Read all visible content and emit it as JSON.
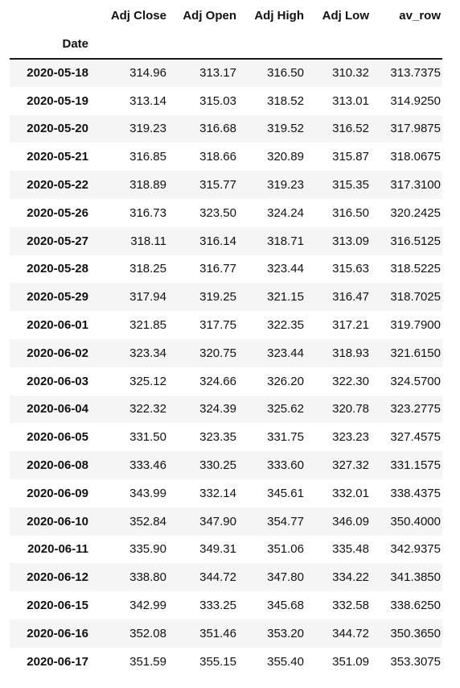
{
  "table": {
    "columns": [
      "Adj Close",
      "Adj Open",
      "Adj High",
      "Adj Low",
      "av_row"
    ],
    "index_name": "Date",
    "rows": [
      {
        "date": "2020-05-18",
        "values": [
          "314.96",
          "313.17",
          "316.50",
          "310.32",
          "313.7375"
        ]
      },
      {
        "date": "2020-05-19",
        "values": [
          "313.14",
          "315.03",
          "318.52",
          "313.01",
          "314.9250"
        ]
      },
      {
        "date": "2020-05-20",
        "values": [
          "319.23",
          "316.68",
          "319.52",
          "316.52",
          "317.9875"
        ]
      },
      {
        "date": "2020-05-21",
        "values": [
          "316.85",
          "318.66",
          "320.89",
          "315.87",
          "318.0675"
        ]
      },
      {
        "date": "2020-05-22",
        "values": [
          "318.89",
          "315.77",
          "319.23",
          "315.35",
          "317.3100"
        ]
      },
      {
        "date": "2020-05-26",
        "values": [
          "316.73",
          "323.50",
          "324.24",
          "316.50",
          "320.2425"
        ]
      },
      {
        "date": "2020-05-27",
        "values": [
          "318.11",
          "316.14",
          "318.71",
          "313.09",
          "316.5125"
        ]
      },
      {
        "date": "2020-05-28",
        "values": [
          "318.25",
          "316.77",
          "323.44",
          "315.63",
          "318.5225"
        ]
      },
      {
        "date": "2020-05-29",
        "values": [
          "317.94",
          "319.25",
          "321.15",
          "316.47",
          "318.7025"
        ]
      },
      {
        "date": "2020-06-01",
        "values": [
          "321.85",
          "317.75",
          "322.35",
          "317.21",
          "319.7900"
        ]
      },
      {
        "date": "2020-06-02",
        "values": [
          "323.34",
          "320.75",
          "323.44",
          "318.93",
          "321.6150"
        ]
      },
      {
        "date": "2020-06-03",
        "values": [
          "325.12",
          "324.66",
          "326.20",
          "322.30",
          "324.5700"
        ]
      },
      {
        "date": "2020-06-04",
        "values": [
          "322.32",
          "324.39",
          "325.62",
          "320.78",
          "323.2775"
        ]
      },
      {
        "date": "2020-06-05",
        "values": [
          "331.50",
          "323.35",
          "331.75",
          "323.23",
          "327.4575"
        ]
      },
      {
        "date": "2020-06-08",
        "values": [
          "333.46",
          "330.25",
          "333.60",
          "327.32",
          "331.1575"
        ]
      },
      {
        "date": "2020-06-09",
        "values": [
          "343.99",
          "332.14",
          "345.61",
          "332.01",
          "338.4375"
        ]
      },
      {
        "date": "2020-06-10",
        "values": [
          "352.84",
          "347.90",
          "354.77",
          "346.09",
          "350.4000"
        ]
      },
      {
        "date": "2020-06-11",
        "values": [
          "335.90",
          "349.31",
          "351.06",
          "335.48",
          "342.9375"
        ]
      },
      {
        "date": "2020-06-12",
        "values": [
          "338.80",
          "344.72",
          "347.80",
          "334.22",
          "341.3850"
        ]
      },
      {
        "date": "2020-06-15",
        "values": [
          "342.99",
          "333.25",
          "345.68",
          "332.58",
          "338.6250"
        ]
      },
      {
        "date": "2020-06-16",
        "values": [
          "352.08",
          "351.46",
          "353.20",
          "344.72",
          "350.3650"
        ]
      },
      {
        "date": "2020-06-17",
        "values": [
          "351.59",
          "355.15",
          "355.40",
          "351.09",
          "353.3075"
        ]
      }
    ]
  },
  "colors": {
    "stripe": "#f5f5f5",
    "text": "#111111",
    "rule": "#1a1a1a"
  }
}
